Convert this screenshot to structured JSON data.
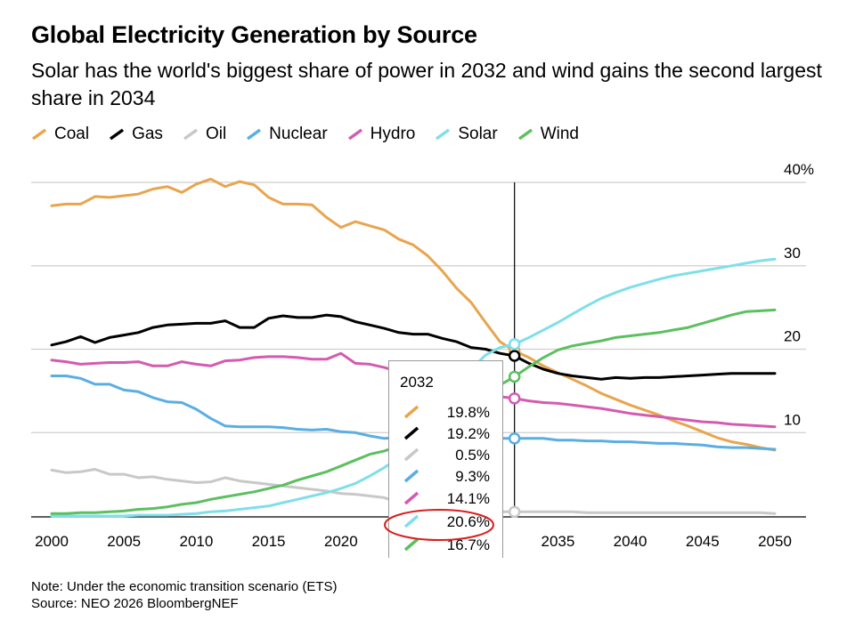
{
  "header": {
    "title": "Global Electricity Generation by Source",
    "subtitle": "Solar has the world's biggest share of power in 2032 and wind gains the second largest share in 2034"
  },
  "legend": {
    "items": [
      {
        "label": "Coal",
        "color": "#e8a54e"
      },
      {
        "label": "Gas",
        "color": "#000000"
      },
      {
        "label": "Oil",
        "color": "#c8c8c8"
      },
      {
        "label": "Nuclear",
        "color": "#5aaee3"
      },
      {
        "label": "Hydro",
        "color": "#d45bb0"
      },
      {
        "label": "Solar",
        "color": "#7fdfe9"
      },
      {
        "label": "Wind",
        "color": "#5cbf60"
      }
    ]
  },
  "tooltip": {
    "year": "2032",
    "values": [
      "19.8%",
      "19.2%",
      "0.5%",
      "9.3%",
      "14.1%",
      "20.6%",
      "16.7%"
    ]
  },
  "footer": {
    "note": "Note: Under the economic transition scenario (ETS)",
    "source": "Source: NEO 2026 BloombergNEF"
  },
  "chart_data": {
    "type": "line",
    "x": [
      2000,
      2001,
      2002,
      2003,
      2004,
      2005,
      2006,
      2007,
      2008,
      2009,
      2010,
      2011,
      2012,
      2013,
      2014,
      2015,
      2016,
      2017,
      2018,
      2019,
      2020,
      2021,
      2022,
      2023,
      2024,
      2025,
      2026,
      2027,
      2028,
      2029,
      2030,
      2031,
      2032,
      2033,
      2034,
      2035,
      2036,
      2037,
      2038,
      2039,
      2040,
      2041,
      2042,
      2043,
      2044,
      2045,
      2046,
      2047,
      2048,
      2049,
      2050
    ],
    "xlim": [
      2000,
      2050
    ],
    "ylim": [
      0,
      40
    ],
    "x_ticks": [
      "2000",
      "2005",
      "2010",
      "2015",
      "2020",
      "2025",
      "2030",
      "2035",
      "2040",
      "2045",
      "2050"
    ],
    "y_ticks": [
      "10",
      "20",
      "30",
      "40%"
    ],
    "y_tick_values": [
      10,
      20,
      30,
      40
    ],
    "grid": true,
    "legend_position": "top-left",
    "highlight_x": 2032,
    "series": [
      {
        "name": "Coal",
        "color": "#e8a54e",
        "values": [
          37.2,
          37.4,
          37.4,
          38.3,
          38.2,
          38.4,
          38.6,
          39.2,
          39.5,
          38.8,
          39.8,
          40.4,
          39.5,
          40.1,
          39.7,
          38.2,
          37.4,
          37.4,
          37.3,
          35.8,
          34.6,
          35.3,
          34.8,
          34.3,
          33.2,
          32.5,
          31.2,
          29.4,
          27.3,
          25.6,
          23.2,
          20.9,
          19.8,
          19.0,
          18.0,
          17.2,
          16.4,
          15.6,
          14.7,
          14.0,
          13.3,
          12.7,
          12.1,
          11.4,
          10.8,
          10.1,
          9.4,
          8.9,
          8.6,
          8.2,
          7.9
        ]
      },
      {
        "name": "Gas",
        "color": "#000000",
        "values": [
          20.5,
          20.9,
          21.5,
          20.8,
          21.4,
          21.7,
          22.0,
          22.6,
          22.9,
          23.0,
          23.1,
          23.1,
          23.4,
          22.6,
          22.6,
          23.7,
          24.0,
          23.8,
          23.8,
          24.1,
          23.9,
          23.3,
          22.9,
          22.5,
          22.0,
          21.8,
          21.8,
          21.3,
          20.9,
          20.2,
          20.0,
          19.5,
          19.2,
          18.3,
          17.6,
          17.1,
          16.8,
          16.6,
          16.4,
          16.6,
          16.5,
          16.6,
          16.6,
          16.7,
          16.8,
          16.9,
          17.0,
          17.1,
          17.1,
          17.1,
          17.1
        ]
      },
      {
        "name": "Oil",
        "color": "#c8c8c8",
        "values": [
          5.5,
          5.2,
          5.3,
          5.6,
          5.0,
          5.0,
          4.6,
          4.7,
          4.4,
          4.2,
          4.0,
          4.1,
          4.6,
          4.2,
          4.0,
          3.8,
          3.6,
          3.4,
          3.2,
          3.0,
          2.7,
          2.6,
          2.4,
          2.2,
          1.6,
          1.2,
          1.0,
          0.9,
          0.8,
          0.7,
          0.6,
          0.5,
          0.5,
          0.5,
          0.5,
          0.5,
          0.5,
          0.4,
          0.4,
          0.4,
          0.4,
          0.4,
          0.4,
          0.4,
          0.4,
          0.4,
          0.4,
          0.4,
          0.4,
          0.4,
          0.3
        ]
      },
      {
        "name": "Nuclear",
        "color": "#5aaee3",
        "values": [
          16.8,
          16.8,
          16.5,
          15.8,
          15.8,
          15.1,
          14.9,
          14.2,
          13.7,
          13.6,
          12.8,
          11.7,
          10.8,
          10.7,
          10.7,
          10.7,
          10.6,
          10.4,
          10.3,
          10.4,
          10.1,
          10.0,
          9.6,
          9.3,
          9.4,
          9.4,
          9.4,
          9.4,
          9.3,
          9.3,
          9.3,
          9.3,
          9.3,
          9.3,
          9.3,
          9.1,
          9.1,
          9.0,
          9.0,
          8.9,
          8.9,
          8.8,
          8.7,
          8.7,
          8.6,
          8.5,
          8.3,
          8.2,
          8.2,
          8.1,
          8.0
        ]
      },
      {
        "name": "Hydro",
        "color": "#d45bb0",
        "values": [
          18.7,
          18.5,
          18.2,
          18.3,
          18.4,
          18.4,
          18.5,
          18.0,
          18.0,
          18.5,
          18.2,
          18.0,
          18.6,
          18.7,
          19.0,
          19.1,
          19.1,
          19.0,
          18.8,
          18.8,
          19.5,
          18.3,
          18.2,
          17.8,
          17.3,
          16.9,
          16.3,
          15.7,
          15.2,
          14.8,
          14.5,
          14.3,
          14.1,
          13.8,
          13.6,
          13.5,
          13.3,
          13.1,
          12.9,
          12.6,
          12.3,
          12.1,
          11.9,
          11.7,
          11.5,
          11.3,
          11.2,
          11.0,
          10.9,
          10.8,
          10.7
        ]
      },
      {
        "name": "Solar",
        "color": "#7fdfe9",
        "values": [
          0.0,
          0.0,
          0.0,
          0.0,
          0.0,
          0.0,
          0.1,
          0.1,
          0.1,
          0.2,
          0.3,
          0.5,
          0.6,
          0.8,
          1.0,
          1.2,
          1.6,
          2.0,
          2.4,
          2.8,
          3.3,
          3.9,
          4.8,
          5.8,
          7.0,
          8.6,
          10.4,
          12.6,
          15.1,
          17.6,
          19.3,
          20.2,
          20.6,
          21.4,
          22.3,
          23.2,
          24.2,
          25.2,
          26.1,
          26.8,
          27.4,
          27.9,
          28.4,
          28.8,
          29.1,
          29.4,
          29.7,
          30.0,
          30.3,
          30.6,
          30.8
        ]
      },
      {
        "name": "Wind",
        "color": "#5cbf60",
        "values": [
          0.3,
          0.3,
          0.4,
          0.4,
          0.5,
          0.6,
          0.8,
          0.9,
          1.1,
          1.4,
          1.6,
          2.0,
          2.3,
          2.6,
          2.9,
          3.3,
          3.7,
          4.3,
          4.8,
          5.3,
          6.0,
          6.7,
          7.4,
          7.8,
          8.4,
          9.1,
          10.0,
          11.0,
          12.1,
          13.4,
          14.7,
          15.7,
          16.7,
          17.9,
          19.0,
          19.9,
          20.4,
          20.7,
          21.0,
          21.4,
          21.6,
          21.8,
          22.0,
          22.3,
          22.6,
          23.1,
          23.6,
          24.1,
          24.5,
          24.6,
          24.7
        ]
      }
    ]
  }
}
